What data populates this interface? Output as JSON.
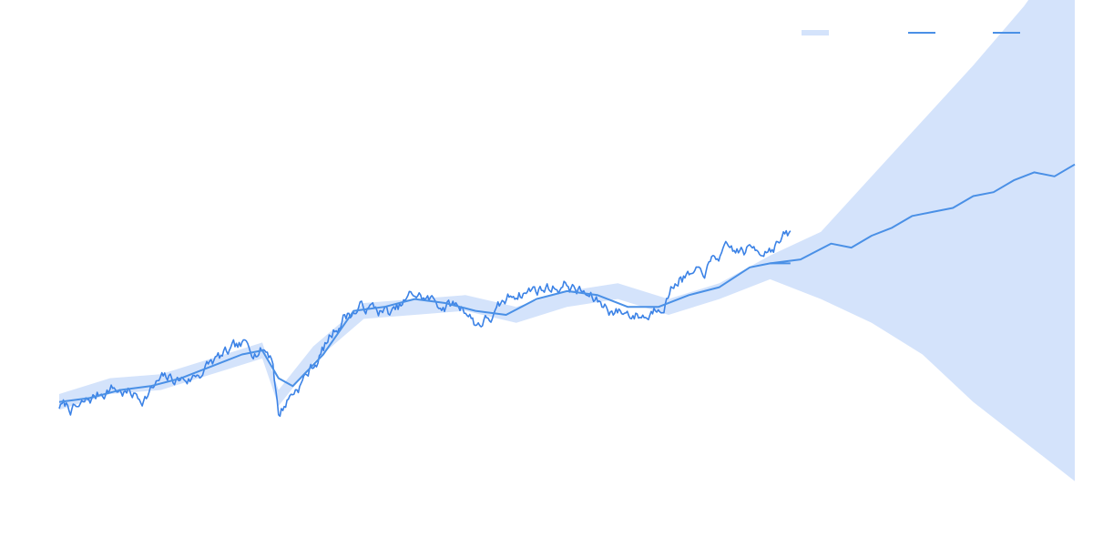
{
  "chart_data": {
    "type": "line",
    "title": "",
    "xlabel": "",
    "ylabel": "",
    "grid": false,
    "axes_visible": false,
    "legend_position": "top-right",
    "x_range": [
      0,
      1
    ],
    "y_range": [
      0,
      1
    ],
    "colors": {
      "band": "#d4e3fb",
      "observed": "#3b82e6",
      "model": "#4a90e6",
      "forecast": "#4a90e6"
    },
    "legend": [
      {
        "key": "band",
        "swatch": "band",
        "label": ""
      },
      {
        "key": "model",
        "swatch": "line",
        "label": ""
      },
      {
        "key": "forecast",
        "swatch": "line",
        "label": ""
      }
    ],
    "series": [
      {
        "key": "band",
        "kind": "band",
        "x": [
          0.0,
          0.05,
          0.1,
          0.15,
          0.2,
          0.216,
          0.25,
          0.3,
          0.35,
          0.4,
          0.45,
          0.5,
          0.55,
          0.6,
          0.65,
          0.7,
          0.75,
          0.8,
          0.85,
          0.9,
          0.95,
          1.0
        ],
        "upper": [
          0.2,
          0.24,
          0.25,
          0.29,
          0.33,
          0.21,
          0.32,
          0.43,
          0.44,
          0.45,
          0.42,
          0.46,
          0.48,
          0.44,
          0.48,
          0.55,
          0.61,
          0.75,
          0.89,
          1.03,
          1.18,
          1.36
        ],
        "lower": [
          0.16,
          0.2,
          0.21,
          0.25,
          0.29,
          0.17,
          0.28,
          0.39,
          0.4,
          0.41,
          0.38,
          0.42,
          0.44,
          0.4,
          0.44,
          0.49,
          0.44,
          0.38,
          0.3,
          0.18,
          0.08,
          -0.02
        ]
      },
      {
        "key": "observed",
        "kind": "noisy",
        "seed": 7,
        "noise": 0.012,
        "x": [
          0.0,
          0.02,
          0.05,
          0.08,
          0.1,
          0.13,
          0.15,
          0.18,
          0.2,
          0.21,
          0.216,
          0.225,
          0.25,
          0.28,
          0.3,
          0.33,
          0.35,
          0.37,
          0.4,
          0.41,
          0.43,
          0.45,
          0.48,
          0.5,
          0.53,
          0.55,
          0.58,
          0.6,
          0.61,
          0.63,
          0.65,
          0.68,
          0.7,
          0.72,
          0.7
        ],
        "y": [
          0.17,
          0.16,
          0.22,
          0.19,
          0.23,
          0.24,
          0.28,
          0.31,
          0.32,
          0.3,
          0.15,
          0.19,
          0.27,
          0.4,
          0.42,
          0.4,
          0.45,
          0.43,
          0.42,
          0.38,
          0.4,
          0.46,
          0.47,
          0.48,
          0.43,
          0.41,
          0.4,
          0.46,
          0.5,
          0.49,
          0.55,
          0.56,
          0.58,
          0.6,
          0.59
        ]
      },
      {
        "key": "model",
        "kind": "line",
        "x": [
          0.0,
          0.03,
          0.06,
          0.09,
          0.12,
          0.15,
          0.18,
          0.2,
          0.216,
          0.23,
          0.26,
          0.29,
          0.32,
          0.35,
          0.38,
          0.41,
          0.44,
          0.47,
          0.5,
          0.53,
          0.56,
          0.59,
          0.62,
          0.65,
          0.68,
          0.7,
          0.72
        ],
        "y": [
          0.18,
          0.19,
          0.21,
          0.22,
          0.24,
          0.27,
          0.3,
          0.31,
          0.24,
          0.22,
          0.3,
          0.41,
          0.42,
          0.44,
          0.43,
          0.41,
          0.4,
          0.44,
          0.46,
          0.45,
          0.42,
          0.42,
          0.45,
          0.47,
          0.52,
          0.53,
          0.53
        ]
      },
      {
        "key": "forecast",
        "kind": "line",
        "x": [
          0.7,
          0.73,
          0.76,
          0.78,
          0.8,
          0.82,
          0.84,
          0.86,
          0.88,
          0.9,
          0.92,
          0.94,
          0.96,
          0.98,
          1.0
        ],
        "y": [
          0.53,
          0.54,
          0.58,
          0.57,
          0.6,
          0.62,
          0.65,
          0.66,
          0.67,
          0.7,
          0.71,
          0.74,
          0.76,
          0.75,
          0.78
        ]
      }
    ]
  }
}
